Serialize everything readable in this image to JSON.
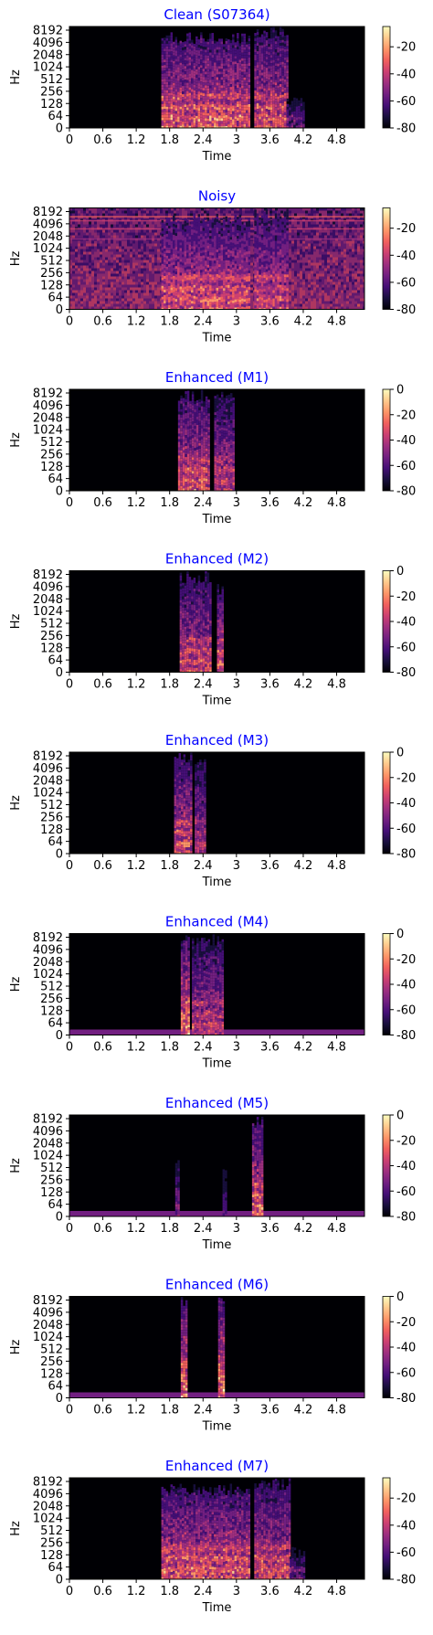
{
  "chart_data": [
    {
      "type": "heatmap",
      "title": "Clean (S07364)",
      "xlabel": "Time",
      "ylabel": "Hz",
      "x_ticks": [
        "0",
        "0.6",
        "1.2",
        "1.8",
        "2.4",
        "3",
        "3.6",
        "4.2",
        "4.8"
      ],
      "y_ticks": [
        "0",
        "64",
        "128",
        "256",
        "512",
        "1024",
        "2048",
        "4096",
        "8192"
      ],
      "xlim": [
        0,
        5.3
      ],
      "colorbar": {
        "ticks": [
          "-20",
          "-40",
          "-60",
          "-80"
        ],
        "range": [
          -80,
          -5
        ]
      },
      "segments": [
        {
          "t0": 1.65,
          "t1": 3.22,
          "fmax": 6000,
          "level": 0.8
        },
        {
          "t0": 3.32,
          "t1": 3.9,
          "fmax": 8500,
          "level": 0.75
        },
        {
          "t0": 3.9,
          "t1": 4.2,
          "fmax": 200,
          "level": 0.4
        }
      ]
    },
    {
      "type": "heatmap",
      "title": "Noisy",
      "xlabel": "Time",
      "ylabel": "Hz",
      "x_ticks": [
        "0",
        "0.6",
        "1.2",
        "1.8",
        "2.4",
        "3",
        "3.6",
        "4.2",
        "4.8"
      ],
      "y_ticks": [
        "0",
        "64",
        "128",
        "256",
        "512",
        "1024",
        "2048",
        "4096",
        "8192"
      ],
      "xlim": [
        0,
        5.3
      ],
      "colorbar": {
        "ticks": [
          "-20",
          "-40",
          "-60",
          "-80"
        ],
        "range": [
          -80,
          -5
        ]
      },
      "noise": true,
      "segments": [
        {
          "t0": 1.65,
          "t1": 3.22,
          "fmax": 6000,
          "level": 0.75
        },
        {
          "t0": 3.32,
          "t1": 3.9,
          "fmax": 8500,
          "level": 0.7
        }
      ]
    },
    {
      "type": "heatmap",
      "title": "Enhanced (M1)",
      "xlabel": "Time",
      "ylabel": "Hz",
      "x_ticks": [
        "0",
        "0.6",
        "1.2",
        "1.8",
        "2.4",
        "3",
        "3.6",
        "4.2",
        "4.8"
      ],
      "y_ticks": [
        "0",
        "64",
        "128",
        "256",
        "512",
        "1024",
        "2048",
        "4096",
        "8192"
      ],
      "xlim": [
        0,
        5.3
      ],
      "colorbar": {
        "ticks": [
          "0",
          "-20",
          "-40",
          "-60",
          "-80"
        ],
        "range": [
          -80,
          0
        ]
      },
      "segments": [
        {
          "t0": 1.95,
          "t1": 2.5,
          "fmax": 8500,
          "level": 0.75
        },
        {
          "t0": 2.6,
          "t1": 2.95,
          "fmax": 8000,
          "level": 0.65
        }
      ]
    },
    {
      "type": "heatmap",
      "title": "Enhanced (M2)",
      "xlabel": "Time",
      "ylabel": "Hz",
      "x_ticks": [
        "0",
        "0.6",
        "1.2",
        "1.8",
        "2.4",
        "3",
        "3.6",
        "4.2",
        "4.8"
      ],
      "y_ticks": [
        "0",
        "64",
        "128",
        "256",
        "512",
        "1024",
        "2048",
        "4096",
        "8192"
      ],
      "xlim": [
        0,
        5.3
      ],
      "colorbar": {
        "ticks": [
          "0",
          "-20",
          "-40",
          "-60",
          "-80"
        ],
        "range": [
          -80,
          0
        ]
      },
      "segments": [
        {
          "t0": 1.98,
          "t1": 2.55,
          "fmax": 8500,
          "level": 0.7
        },
        {
          "t0": 2.65,
          "t1": 2.74,
          "fmax": 4096,
          "level": 0.75
        }
      ]
    },
    {
      "type": "heatmap",
      "title": "Enhanced (M3)",
      "xlabel": "Time",
      "ylabel": "Hz",
      "x_ticks": [
        "0",
        "0.6",
        "1.2",
        "1.8",
        "2.4",
        "3",
        "3.6",
        "4.2",
        "4.8"
      ],
      "y_ticks": [
        "0",
        "64",
        "128",
        "256",
        "512",
        "1024",
        "2048",
        "4096",
        "8192"
      ],
      "xlim": [
        0,
        5.3
      ],
      "colorbar": {
        "ticks": [
          "0",
          "-20",
          "-40",
          "-60",
          "-80"
        ],
        "range": [
          -80,
          0
        ]
      },
      "segments": [
        {
          "t0": 1.88,
          "t1": 2.2,
          "fmax": 8500,
          "level": 0.75
        },
        {
          "t0": 2.25,
          "t1": 2.45,
          "fmax": 8000,
          "level": 0.6
        }
      ]
    },
    {
      "type": "heatmap",
      "title": "Enhanced (M4)",
      "xlabel": "Time",
      "ylabel": "Hz",
      "x_ticks": [
        "0",
        "0.6",
        "1.2",
        "1.8",
        "2.4",
        "3",
        "3.6",
        "4.2",
        "4.8"
      ],
      "y_ticks": [
        "0",
        "64",
        "128",
        "256",
        "512",
        "1024",
        "2048",
        "4096",
        "8192"
      ],
      "xlim": [
        0,
        5.3
      ],
      "colorbar": {
        "ticks": [
          "0",
          "-20",
          "-40",
          "-60",
          "-80"
        ],
        "range": [
          -80,
          0
        ]
      },
      "floor_band": true,
      "segments": [
        {
          "t0": 2.0,
          "t1": 2.15,
          "fmax": 8500,
          "level": 0.85
        },
        {
          "t0": 2.2,
          "t1": 2.75,
          "fmax": 8500,
          "level": 0.65
        }
      ]
    },
    {
      "type": "heatmap",
      "title": "Enhanced (M5)",
      "xlabel": "Time",
      "ylabel": "Hz",
      "x_ticks": [
        "0",
        "0.6",
        "1.2",
        "1.8",
        "2.4",
        "3",
        "3.6",
        "4.2",
        "4.8"
      ],
      "y_ticks": [
        "0",
        "64",
        "128",
        "256",
        "512",
        "1024",
        "2048",
        "4096",
        "8192"
      ],
      "xlim": [
        0,
        5.3
      ],
      "colorbar": {
        "ticks": [
          "0",
          "-20",
          "-40",
          "-60",
          "-80"
        ],
        "range": [
          -80,
          0
        ]
      },
      "floor_band": true,
      "segments": [
        {
          "t0": 1.9,
          "t1": 1.98,
          "fmax": 1024,
          "level": 0.45
        },
        {
          "t0": 2.75,
          "t1": 2.82,
          "fmax": 512,
          "level": 0.35
        },
        {
          "t0": 3.28,
          "t1": 3.45,
          "fmax": 8500,
          "level": 0.8
        }
      ]
    },
    {
      "type": "heatmap",
      "title": "Enhanced (M6)",
      "xlabel": "Time",
      "ylabel": "Hz",
      "x_ticks": [
        "0",
        "0.6",
        "1.2",
        "1.8",
        "2.4",
        "3",
        "3.6",
        "4.2",
        "4.8"
      ],
      "y_ticks": [
        "0",
        "64",
        "128",
        "256",
        "512",
        "1024",
        "2048",
        "4096",
        "8192"
      ],
      "xlim": [
        0,
        5.3
      ],
      "colorbar": {
        "ticks": [
          "0",
          "-20",
          "-40",
          "-60",
          "-80"
        ],
        "range": [
          -80,
          0
        ]
      },
      "floor_band": true,
      "segments": [
        {
          "t0": 2.0,
          "t1": 2.1,
          "fmax": 8500,
          "level": 0.9
        },
        {
          "t0": 2.67,
          "t1": 2.78,
          "fmax": 8500,
          "level": 0.9
        }
      ]
    },
    {
      "type": "heatmap",
      "title": "Enhanced (M7)",
      "xlabel": "Time",
      "ylabel": "Hz",
      "x_ticks": [
        "0",
        "0.6",
        "1.2",
        "1.8",
        "2.4",
        "3",
        "3.6",
        "4.2",
        "4.8"
      ],
      "y_ticks": [
        "0",
        "64",
        "128",
        "256",
        "512",
        "1024",
        "2048",
        "4096",
        "8192"
      ],
      "xlim": [
        0,
        5.3
      ],
      "colorbar": {
        "ticks": [
          "-20",
          "-40",
          "-60",
          "-80"
        ],
        "range": [
          -80,
          -5
        ]
      },
      "segments": [
        {
          "t0": 1.65,
          "t1": 3.22,
          "fmax": 6000,
          "level": 0.78
        },
        {
          "t0": 3.32,
          "t1": 3.95,
          "fmax": 8500,
          "level": 0.72
        },
        {
          "t0": 3.95,
          "t1": 4.2,
          "fmax": 200,
          "level": 0.4
        }
      ]
    }
  ],
  "colors": {
    "title": "#0000ff",
    "background": "#000004",
    "colormap": [
      "#000004",
      "#180f3d",
      "#440f76",
      "#721f81",
      "#9e2f7f",
      "#cd4071",
      "#f1605d",
      "#fd9668",
      "#feca8d",
      "#fcfdbf"
    ]
  }
}
